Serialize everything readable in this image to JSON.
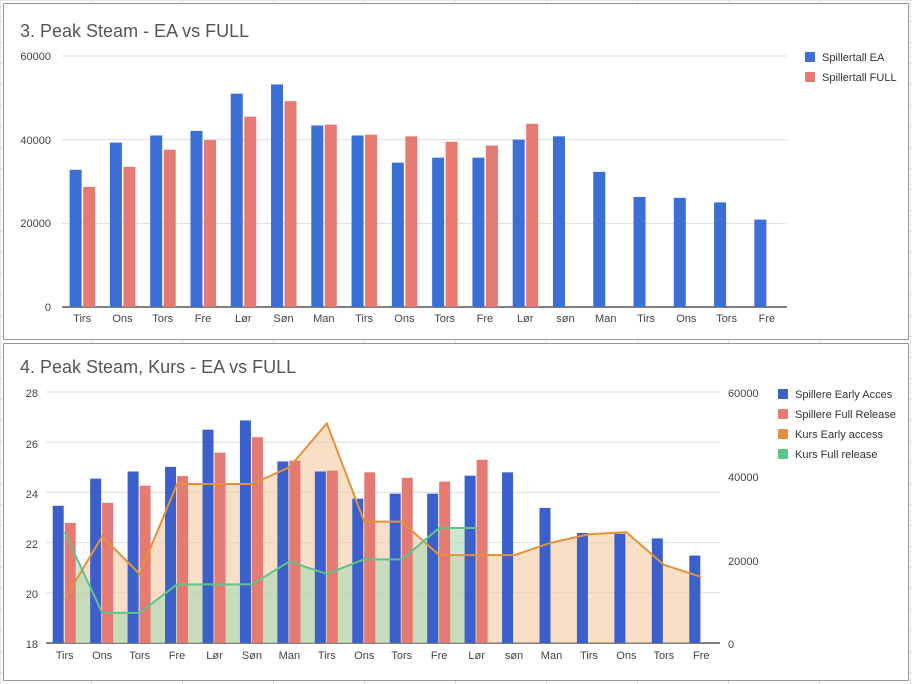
{
  "charts": {
    "chart1": {
      "title": "3. Peak Steam - EA vs FULL",
      "legend": [
        {
          "label": "Spillertall EA",
          "color": "#3c6fd6"
        },
        {
          "label": "Spillertall FULL",
          "color": "#e57a73"
        }
      ],
      "y_ticks": [
        "0",
        "20000",
        "40000",
        "60000"
      ]
    },
    "chart2": {
      "title": "4. Peak Steam, Kurs - EA vs FULL",
      "legend": [
        {
          "label": "Spillere Early Acces",
          "color": "#3b5fcb"
        },
        {
          "label": "Spillere Full Release",
          "color": "#e57a73"
        },
        {
          "label": "Kurs Early access",
          "color": "#e3923c"
        },
        {
          "label": "Kurs Full release",
          "color": "#5fc38c"
        }
      ],
      "y_left_ticks": [
        "18",
        "20",
        "22",
        "24",
        "26",
        "28"
      ],
      "y_right_ticks": [
        "0",
        "20000",
        "40000",
        "60000"
      ]
    }
  },
  "chart_data": [
    {
      "type": "bar",
      "title": "3. Peak Steam - EA vs FULL",
      "categories": [
        "Tirs",
        "Ons",
        "Tors",
        "Fre",
        "Lør",
        "Søn",
        "Man",
        "Tirs",
        "Ons",
        "Tors",
        "Fre",
        "Lør",
        "søn",
        "Man",
        "Tirs",
        "Ons",
        "Tors",
        "Fre"
      ],
      "series": [
        {
          "name": "Spillertall EA",
          "values": [
            32800,
            39300,
            41000,
            42100,
            51000,
            53200,
            43400,
            41000,
            34500,
            35700,
            35700,
            40000,
            40800,
            32300,
            26300,
            26100,
            25000,
            20900
          ]
        },
        {
          "name": "Spillertall FULL",
          "values": [
            28700,
            33500,
            37600,
            39900,
            45500,
            49200,
            43600,
            41200,
            40800,
            39500,
            38600,
            43800,
            null,
            null,
            null,
            null,
            null,
            null
          ]
        }
      ],
      "ylim": [
        0,
        60000
      ],
      "legend": "right",
      "grid": true
    },
    {
      "type": "bar",
      "title": "4. Peak Steam, Kurs - EA vs FULL",
      "categories": [
        "Tirs",
        "Ons",
        "Tors",
        "Fre",
        "Lør",
        "Søn",
        "Man",
        "Tirs",
        "Ons",
        "Tors",
        "Fre",
        "Lør",
        "søn",
        "Man",
        "Tirs",
        "Ons",
        "Tors",
        "Fre"
      ],
      "series": [
        {
          "name": "Spillere Early Acces",
          "type": "bar",
          "axis": "right",
          "values": [
            32800,
            39300,
            41000,
            42100,
            51000,
            53200,
            43400,
            41000,
            34500,
            35700,
            35700,
            40000,
            40800,
            32300,
            26300,
            26100,
            25000,
            20900
          ]
        },
        {
          "name": "Spillere Full Release",
          "type": "bar",
          "axis": "right",
          "values": [
            28700,
            33500,
            37600,
            39900,
            45500,
            49200,
            43600,
            41200,
            40800,
            39500,
            38600,
            43800,
            null,
            null,
            null,
            null,
            null,
            null
          ]
        },
        {
          "name": "Kurs Early access",
          "type": "area",
          "axis": "right",
          "values": [
            10500,
            25500,
            16500,
            38000,
            38000,
            38000,
            42000,
            52500,
            29000,
            29000,
            21000,
            21000,
            21000,
            24000,
            26000,
            26500,
            18700,
            15800
          ]
        },
        {
          "name": "Kurs Full release",
          "type": "area",
          "axis": "right",
          "values": [
            26500,
            7200,
            7200,
            14000,
            14000,
            14000,
            19500,
            16500,
            20000,
            20000,
            27500,
            27500,
            null,
            null,
            null,
            null,
            null,
            null
          ]
        }
      ],
      "ylim_left": [
        18,
        28
      ],
      "ylim_right": [
        0,
        60000
      ],
      "legend": "right",
      "grid": true
    }
  ]
}
